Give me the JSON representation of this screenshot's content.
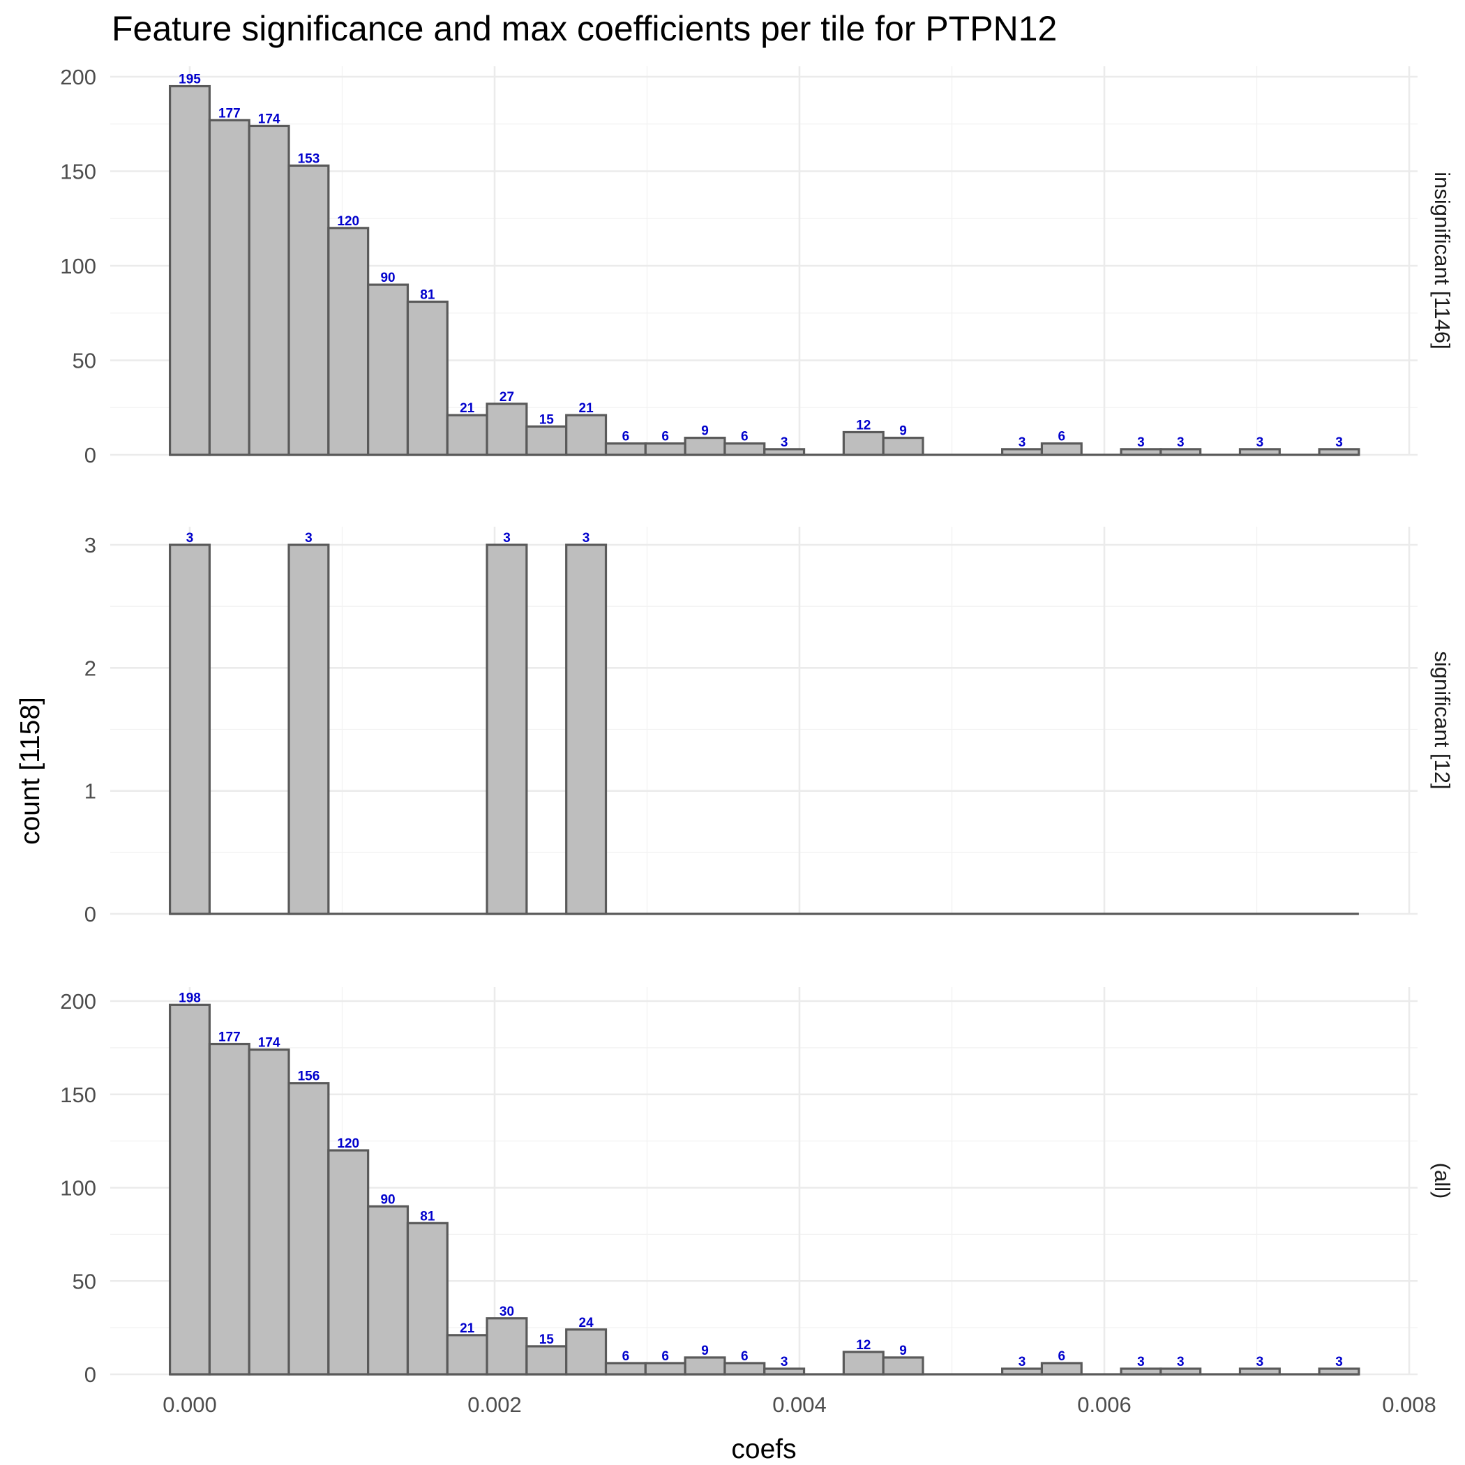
{
  "chart_data": {
    "type": "bar",
    "title": "Feature significance and max coefficients per tile for PTPN12",
    "xlabel": "coefs",
    "ylabel": "count [1158]",
    "xlim": [
      -0.0005,
      0.0081
    ],
    "x_ticks": [
      "0.000",
      "0.002",
      "0.004",
      "0.006",
      "0.008"
    ],
    "x_tick_values": [
      0,
      0.002,
      0.004,
      0.006,
      0.008
    ],
    "bin_width": 0.00026,
    "bin_centers": [
      0.0,
      0.00026,
      0.00052,
      0.00078,
      0.00104,
      0.0013,
      0.00156,
      0.00182,
      0.00208,
      0.00234,
      0.0026,
      0.00286,
      0.00312,
      0.00338,
      0.00364,
      0.0039,
      0.00416,
      0.00442,
      0.00468,
      0.00494,
      0.0052,
      0.00546,
      0.00572,
      0.00598,
      0.00624,
      0.0065,
      0.00676,
      0.00702,
      0.00728,
      0.00754
    ],
    "grid": true,
    "facets": [
      {
        "strip": "insignificant [1146]",
        "ylim": [
          0,
          200
        ],
        "y_ticks": [
          "0",
          "50",
          "100",
          "150",
          "200"
        ],
        "y_tick_values": [
          0,
          50,
          100,
          150,
          200
        ],
        "values": [
          195,
          177,
          174,
          153,
          120,
          90,
          81,
          21,
          27,
          15,
          21,
          6,
          6,
          9,
          6,
          3,
          0,
          12,
          9,
          0,
          0,
          3,
          6,
          0,
          3,
          3,
          0,
          3,
          0,
          3
        ]
      },
      {
        "strip": "significant [12]",
        "ylim": [
          0,
          3
        ],
        "y_ticks": [
          "0",
          "1",
          "2",
          "3"
        ],
        "y_tick_values": [
          0,
          1,
          2,
          3
        ],
        "values": [
          3,
          0,
          0,
          3,
          0,
          0,
          0,
          0,
          3,
          0,
          3,
          0,
          0,
          0,
          0,
          0,
          0,
          0,
          0,
          0,
          0,
          0,
          0,
          0,
          0,
          0,
          0,
          0,
          0,
          0
        ]
      },
      {
        "strip": "(all)",
        "ylim": [
          0,
          200
        ],
        "y_ticks": [
          "0",
          "50",
          "100",
          "150",
          "200"
        ],
        "y_tick_values": [
          0,
          50,
          100,
          150,
          200
        ],
        "values": [
          198,
          177,
          174,
          156,
          120,
          90,
          81,
          21,
          30,
          15,
          24,
          6,
          6,
          9,
          6,
          3,
          0,
          12,
          9,
          0,
          0,
          3,
          6,
          0,
          3,
          3,
          0,
          3,
          0,
          3
        ]
      }
    ],
    "colors": {
      "bar_fill": "#bebebe",
      "bar_outline": "#5a5a5a",
      "label": "#0000cc"
    }
  }
}
